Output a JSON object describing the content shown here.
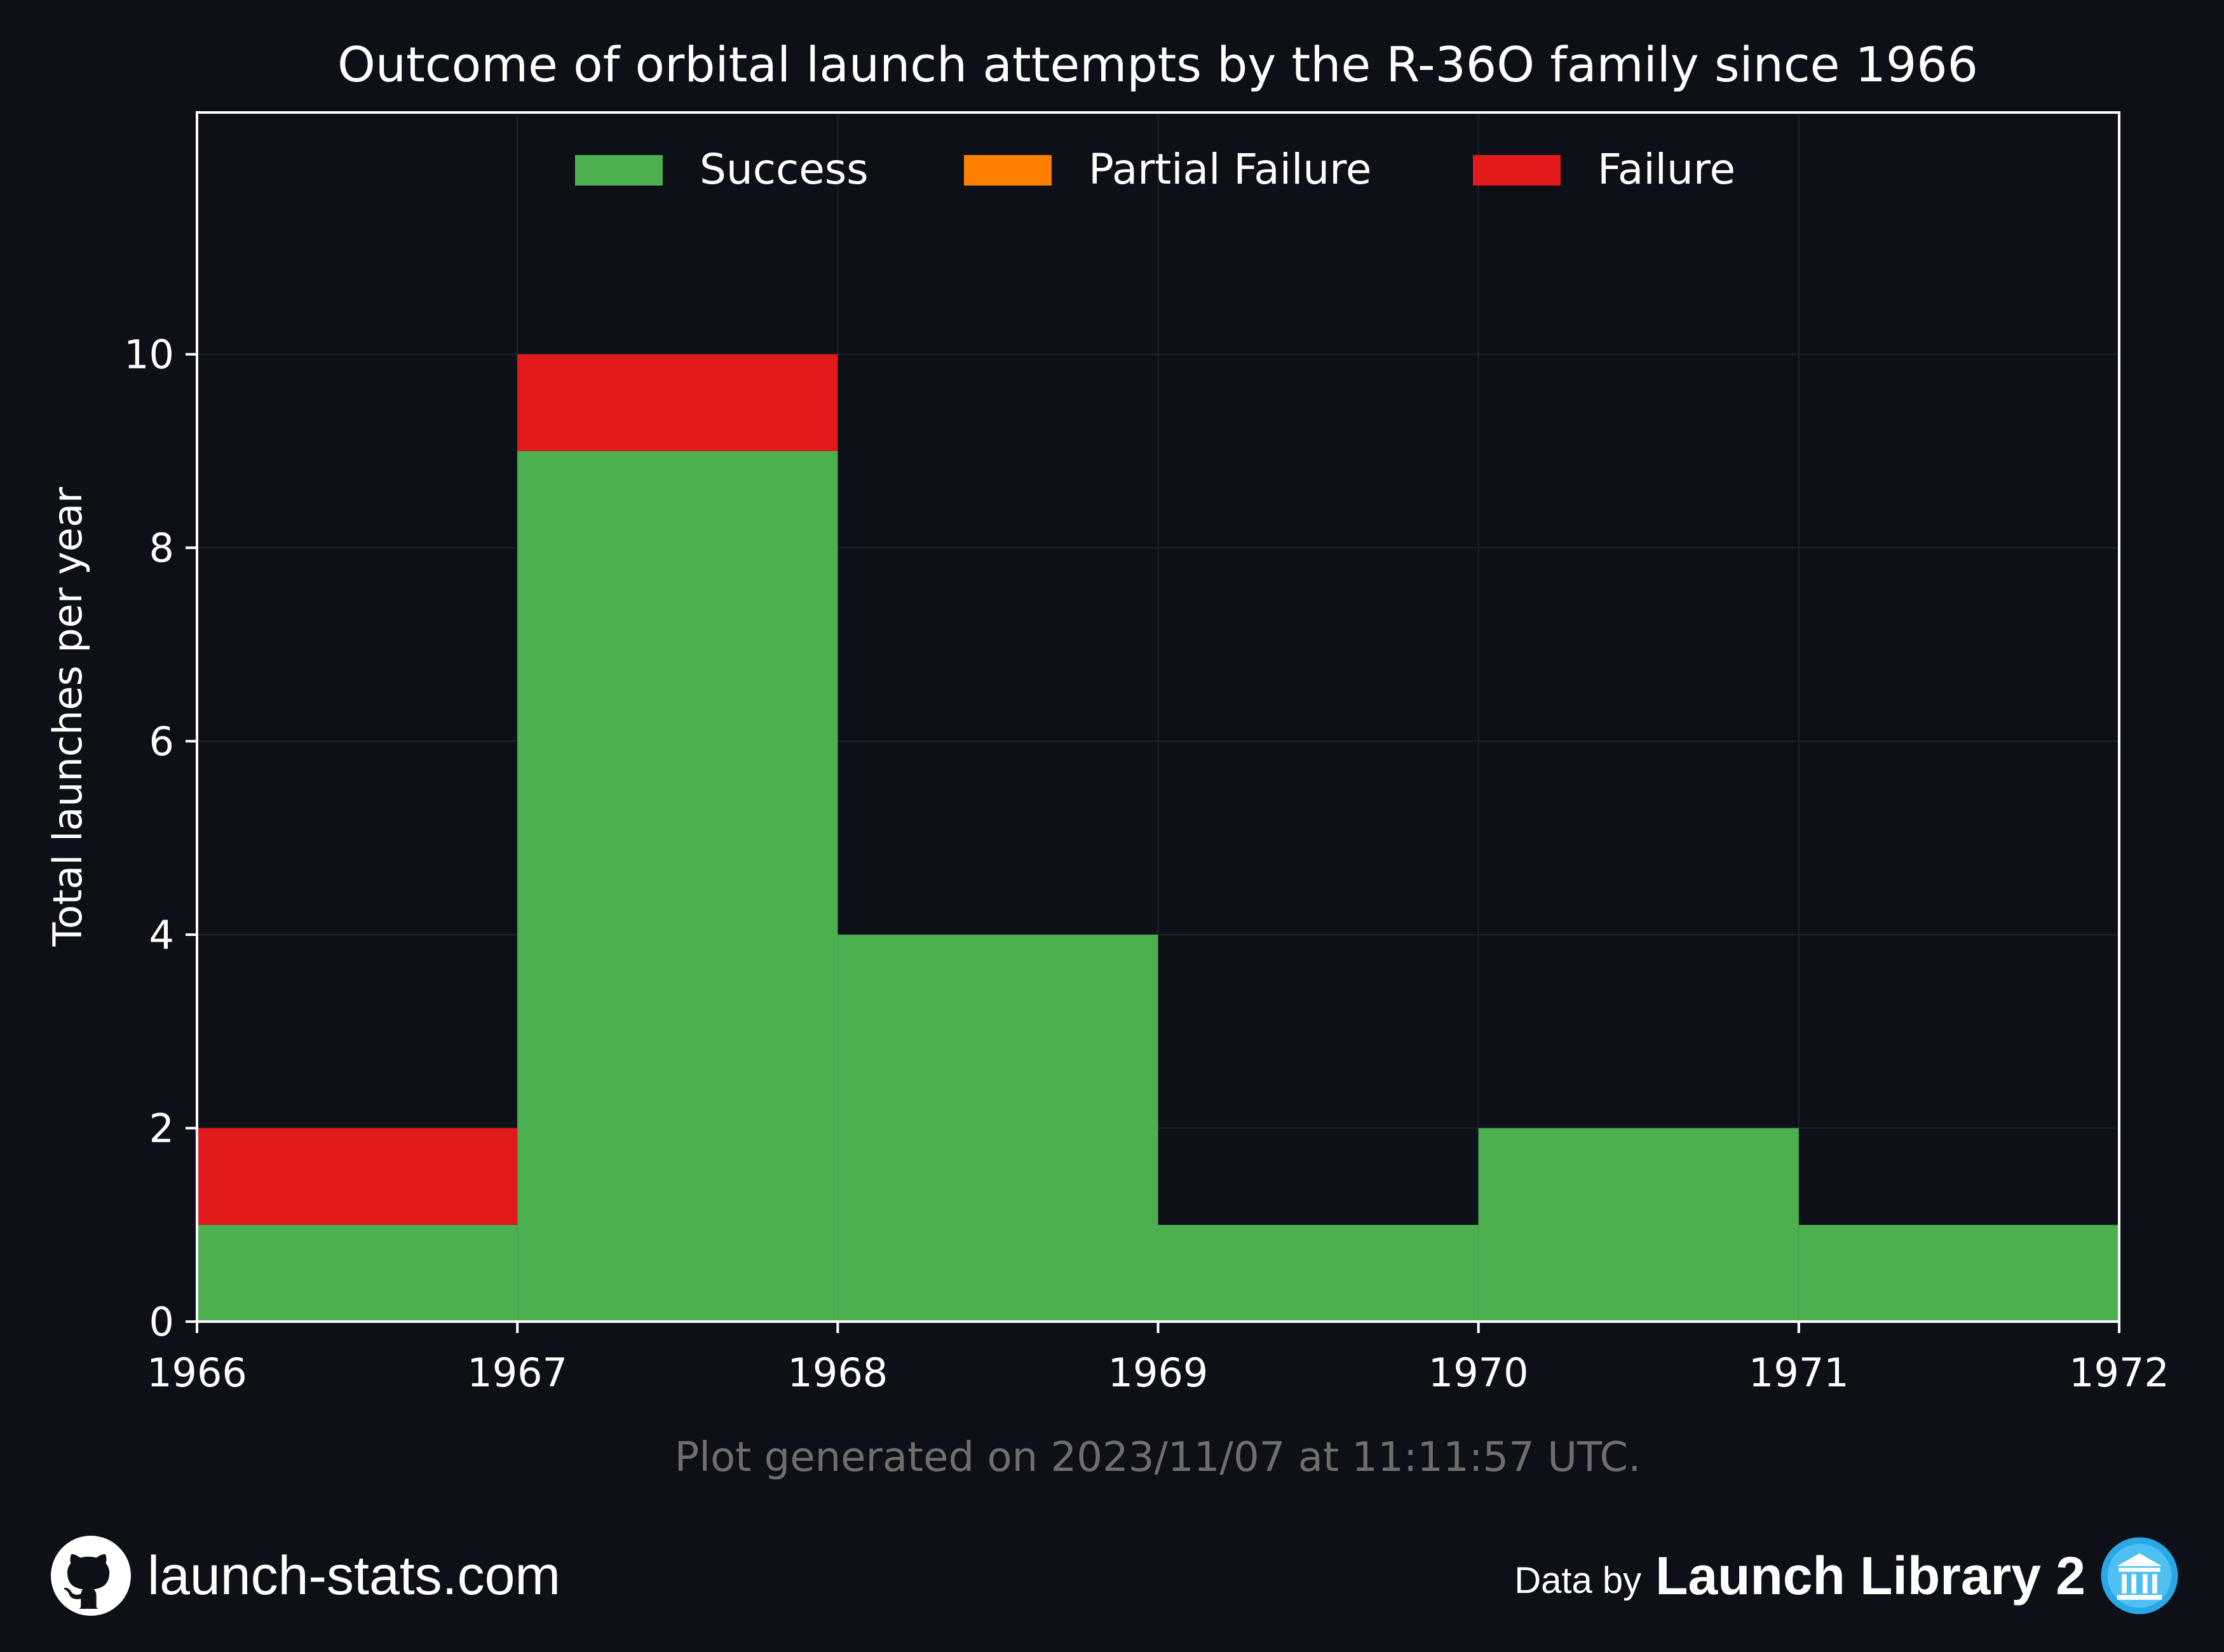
{
  "chart_data": {
    "type": "bar",
    "title": "Outcome of orbital launch attempts by the R-36O family since 1966",
    "xlabel": "",
    "ylabel": "Total launches per year",
    "x_bin_edges": [
      1966,
      1967,
      1968,
      1969,
      1970,
      1971,
      1972
    ],
    "categories": [
      "1966",
      "1967",
      "1968",
      "1969",
      "1970",
      "1971"
    ],
    "x_ticks": [
      "1966",
      "1967",
      "1968",
      "1969",
      "1970",
      "1971",
      "1972"
    ],
    "y_ticks": [
      0,
      2,
      4,
      6,
      8,
      10
    ],
    "xlim": [
      1966,
      1972
    ],
    "ylim": [
      0,
      12.5
    ],
    "stacked": true,
    "grid": true,
    "legend_position": "top-center",
    "series": [
      {
        "name": "Success",
        "color": "#4caf50",
        "values": [
          1,
          9,
          4,
          1,
          2,
          1
        ]
      },
      {
        "name": "Partial Failure",
        "color": "#ff8000",
        "values": [
          0,
          0,
          0,
          0,
          0,
          0
        ]
      },
      {
        "name": "Failure",
        "color": "#e31a1c",
        "values": [
          1,
          1,
          0,
          0,
          0,
          0
        ]
      }
    ],
    "annotation": "Plot generated on 2023/11/07 at 11:11:57 UTC."
  },
  "footer": {
    "site": "launch-stats.com",
    "site_icon": "github-icon",
    "data_prefix": "Data by",
    "data_source": "Launch Library 2",
    "data_source_icon": "launch-library-logo-icon"
  },
  "colors": {
    "background": "#0d1017",
    "axis": "#ffffff",
    "grid": "#1e232c",
    "annotation": "#6e6e6e"
  }
}
